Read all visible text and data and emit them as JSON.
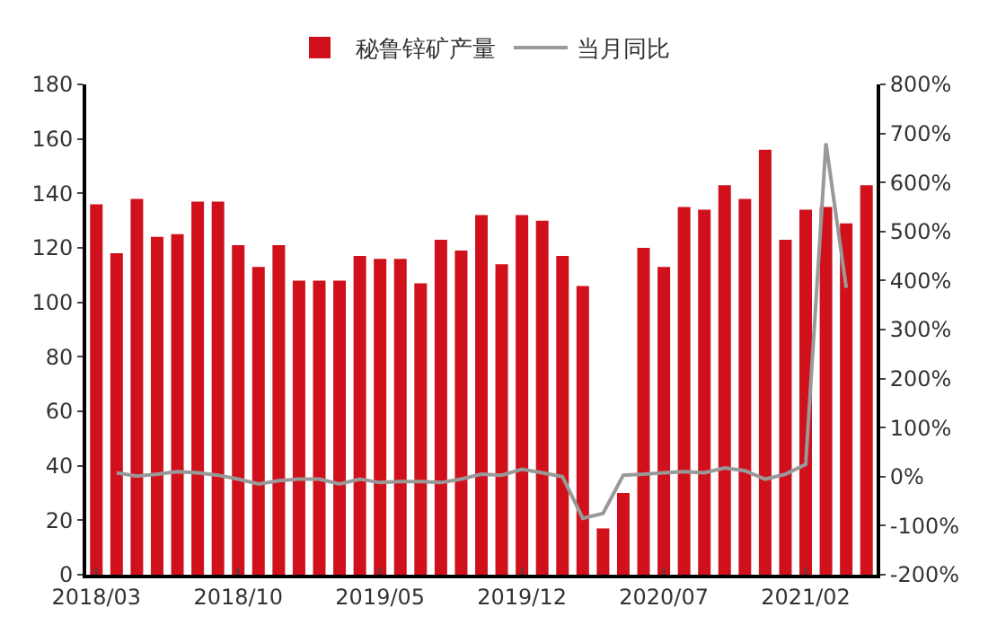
{
  "chart_data": {
    "type": "bar",
    "categories": [
      "2018/03",
      null,
      null,
      null,
      null,
      null,
      null,
      "2018/10",
      null,
      null,
      null,
      null,
      null,
      null,
      "2019/05",
      null,
      null,
      null,
      null,
      null,
      null,
      "2019/12",
      null,
      null,
      null,
      null,
      null,
      null,
      "2020/07",
      null,
      null,
      null,
      null,
      null,
      null,
      "2021/02",
      null,
      null,
      null
    ],
    "series": [
      {
        "name": "秘鲁锌矿产量",
        "color": "#d0111b",
        "values": [
          136,
          118,
          138,
          124,
          125,
          137,
          137,
          121,
          113,
          121,
          108,
          108,
          108,
          117,
          116,
          116,
          107,
          123,
          119,
          132,
          114,
          132,
          130,
          117,
          106,
          17,
          30,
          120,
          113,
          135,
          134,
          143,
          138,
          156,
          123,
          134,
          135,
          129,
          143
        ]
      },
      {
        "name": "当月同比",
        "type": "line",
        "axis": "y2",
        "color": "#999999",
        "values": [
          null,
          8,
          1,
          5,
          10,
          8,
          3,
          -5,
          -15,
          -8,
          -5,
          -5,
          -15,
          -5,
          -12,
          -10,
          -10,
          -12,
          -5,
          5,
          3,
          15,
          8,
          0,
          -85,
          -75,
          3,
          5,
          8,
          10,
          8,
          18,
          12,
          -5,
          5,
          25,
          680,
          385,
          null
        ]
      }
    ],
    "ylim": [
      0,
      180
    ],
    "yticks": [
      0,
      20,
      40,
      60,
      80,
      100,
      120,
      140,
      160,
      180
    ],
    "y2lim": [
      -200,
      800
    ],
    "y2ticks": [
      {
        "value": -200,
        "label": "-200%"
      },
      {
        "value": -100,
        "label": "-100%"
      },
      {
        "value": 0,
        "label": "0%"
      },
      {
        "value": 100,
        "label": "100%"
      },
      {
        "value": 200,
        "label": "200%"
      },
      {
        "value": 300,
        "label": "300%"
      },
      {
        "value": 400,
        "label": "400%"
      },
      {
        "value": 500,
        "label": "500%"
      },
      {
        "value": 600,
        "label": "600%"
      },
      {
        "value": 700,
        "label": "700%"
      },
      {
        "value": 800,
        "label": "800%"
      }
    ],
    "grid": false,
    "legend": "top",
    "marker": "none",
    "line_style": "solid"
  }
}
